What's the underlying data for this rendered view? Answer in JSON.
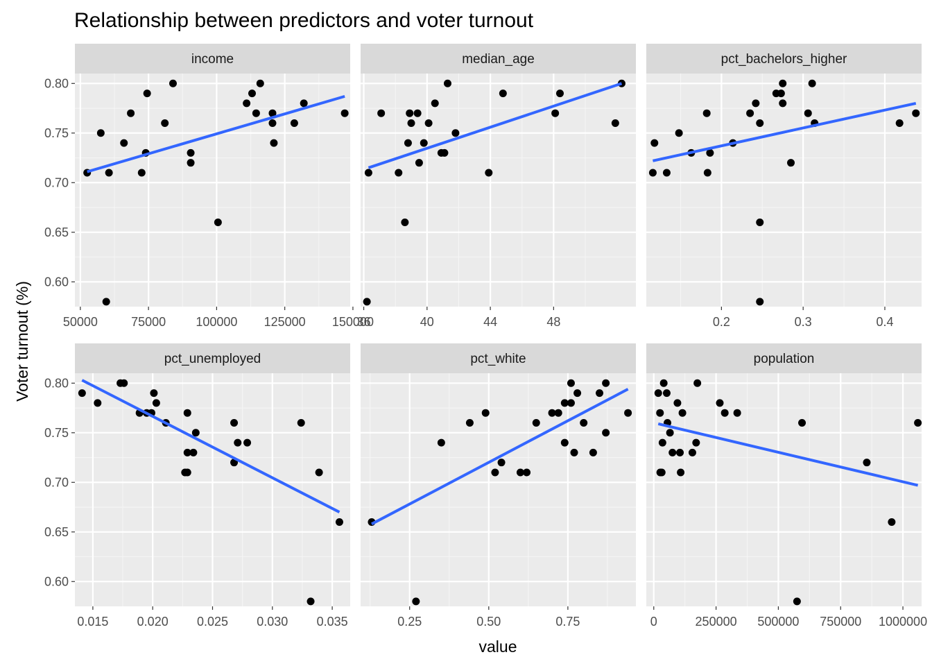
{
  "chart_data": {
    "type": "scatter",
    "title": "Relationship between predictors and voter turnout",
    "xlabel": "value",
    "ylabel": "Voter turnout (%)",
    "ylim": [
      0.575,
      0.81
    ],
    "y_ticks": [
      0.6,
      0.65,
      0.7,
      0.75,
      0.8
    ],
    "y_tick_labels": [
      "0.60",
      "0.65",
      "0.70",
      "0.75",
      "0.80"
    ],
    "grid": true,
    "series_color": "#000000",
    "trend_color": "#3366ff",
    "panel_bg": "#ebebeb",
    "strip_bg": "#d9d9d9",
    "panels": [
      {
        "name": "income",
        "xlim": [
          48000,
          149000
        ],
        "x_ticks": [
          50000,
          75000,
          100000,
          125000,
          150000
        ],
        "x_tick_labels": [
          "50000",
          "75000",
          "100000",
          "125000",
          "150000"
        ],
        "points": [
          [
            52500,
            0.71
          ],
          [
            57500,
            0.75
          ],
          [
            59500,
            0.58
          ],
          [
            60500,
            0.71
          ],
          [
            66000,
            0.74
          ],
          [
            68500,
            0.77
          ],
          [
            72500,
            0.71
          ],
          [
            74000,
            0.73
          ],
          [
            74500,
            0.79
          ],
          [
            81000,
            0.76
          ],
          [
            84000,
            0.8
          ],
          [
            90500,
            0.72
          ],
          [
            90500,
            0.73
          ],
          [
            100500,
            0.66
          ],
          [
            111000,
            0.78
          ],
          [
            113000,
            0.79
          ],
          [
            114500,
            0.77
          ],
          [
            116000,
            0.8
          ],
          [
            120500,
            0.76
          ],
          [
            120500,
            0.77
          ],
          [
            121000,
            0.74
          ],
          [
            128500,
            0.76
          ],
          [
            132000,
            0.78
          ],
          [
            147000,
            0.77
          ]
        ],
        "trend": [
          [
            52500,
            0.711
          ],
          [
            147000,
            0.787
          ]
        ]
      },
      {
        "name": "median_age",
        "xlim": [
          35.8,
          53.2
        ],
        "x_ticks": [
          36,
          40,
          44,
          48
        ],
        "x_tick_labels": [
          "36",
          "40",
          "44",
          "48"
        ],
        "points": [
          [
            36.2,
            0.58
          ],
          [
            36.3,
            0.71
          ],
          [
            37.1,
            0.77
          ],
          [
            38.2,
            0.71
          ],
          [
            38.6,
            0.66
          ],
          [
            38.8,
            0.74
          ],
          [
            38.9,
            0.77
          ],
          [
            39.0,
            0.76
          ],
          [
            39.4,
            0.77
          ],
          [
            39.5,
            0.72
          ],
          [
            39.8,
            0.74
          ],
          [
            40.1,
            0.76
          ],
          [
            40.5,
            0.78
          ],
          [
            40.9,
            0.73
          ],
          [
            41.1,
            0.73
          ],
          [
            41.3,
            0.8
          ],
          [
            41.8,
            0.75
          ],
          [
            43.9,
            0.71
          ],
          [
            44.8,
            0.79
          ],
          [
            48.1,
            0.77
          ],
          [
            48.4,
            0.79
          ],
          [
            51.9,
            0.76
          ],
          [
            52.3,
            0.8
          ]
        ],
        "trend": [
          [
            36.3,
            0.715
          ],
          [
            52.3,
            0.8
          ]
        ]
      },
      {
        "name": "pct_bachelors_higher",
        "xlim": [
          0.108,
          0.445
        ],
        "x_ticks": [
          0.2,
          0.3,
          0.4
        ],
        "x_tick_labels": [
          "0.2",
          "0.3",
          "0.4"
        ],
        "points": [
          [
            0.116,
            0.71
          ],
          [
            0.118,
            0.74
          ],
          [
            0.133,
            0.71
          ],
          [
            0.148,
            0.75
          ],
          [
            0.163,
            0.73
          ],
          [
            0.182,
            0.77
          ],
          [
            0.183,
            0.71
          ],
          [
            0.186,
            0.73
          ],
          [
            0.214,
            0.74
          ],
          [
            0.235,
            0.77
          ],
          [
            0.242,
            0.78
          ],
          [
            0.247,
            0.76
          ],
          [
            0.247,
            0.66
          ],
          [
            0.247,
            0.58
          ],
          [
            0.267,
            0.79
          ],
          [
            0.273,
            0.79
          ],
          [
            0.275,
            0.8
          ],
          [
            0.275,
            0.78
          ],
          [
            0.285,
            0.72
          ],
          [
            0.306,
            0.77
          ],
          [
            0.311,
            0.8
          ],
          [
            0.314,
            0.76
          ],
          [
            0.418,
            0.76
          ],
          [
            0.438,
            0.77
          ]
        ],
        "trend": [
          [
            0.116,
            0.722
          ],
          [
            0.438,
            0.78
          ]
        ]
      },
      {
        "name": "pct_unemployed",
        "xlim": [
          0.0135,
          0.0365
        ],
        "x_ticks": [
          0.015,
          0.02,
          0.025,
          0.03,
          0.035
        ],
        "x_tick_labels": [
          "0.015",
          "0.020",
          "0.025",
          "0.030",
          "0.035"
        ],
        "points": [
          [
            0.0141,
            0.79
          ],
          [
            0.0154,
            0.78
          ],
          [
            0.0173,
            0.8
          ],
          [
            0.0176,
            0.8
          ],
          [
            0.0189,
            0.77
          ],
          [
            0.0195,
            0.77
          ],
          [
            0.0199,
            0.77
          ],
          [
            0.0201,
            0.79
          ],
          [
            0.0203,
            0.78
          ],
          [
            0.0211,
            0.76
          ],
          [
            0.0227,
            0.71
          ],
          [
            0.0229,
            0.71
          ],
          [
            0.0229,
            0.73
          ],
          [
            0.0229,
            0.77
          ],
          [
            0.0234,
            0.73
          ],
          [
            0.0236,
            0.75
          ],
          [
            0.0268,
            0.72
          ],
          [
            0.0268,
            0.76
          ],
          [
            0.0271,
            0.74
          ],
          [
            0.0279,
            0.74
          ],
          [
            0.0324,
            0.76
          ],
          [
            0.0332,
            0.58
          ],
          [
            0.0339,
            0.71
          ],
          [
            0.0356,
            0.66
          ]
        ],
        "trend": [
          [
            0.0141,
            0.803
          ],
          [
            0.0356,
            0.67
          ]
        ]
      },
      {
        "name": "pct_white",
        "xlim": [
          0.095,
          0.965
        ],
        "x_ticks": [
          0.25,
          0.5,
          0.75
        ],
        "x_tick_labels": [
          "0.25",
          "0.50",
          "0.75"
        ],
        "points": [
          [
            0.13,
            0.66
          ],
          [
            0.27,
            0.58
          ],
          [
            0.35,
            0.74
          ],
          [
            0.44,
            0.76
          ],
          [
            0.49,
            0.77
          ],
          [
            0.52,
            0.71
          ],
          [
            0.54,
            0.72
          ],
          [
            0.6,
            0.71
          ],
          [
            0.62,
            0.71
          ],
          [
            0.65,
            0.76
          ],
          [
            0.7,
            0.77
          ],
          [
            0.72,
            0.77
          ],
          [
            0.74,
            0.74
          ],
          [
            0.74,
            0.78
          ],
          [
            0.76,
            0.8
          ],
          [
            0.76,
            0.78
          ],
          [
            0.77,
            0.73
          ],
          [
            0.78,
            0.79
          ],
          [
            0.8,
            0.76
          ],
          [
            0.83,
            0.73
          ],
          [
            0.85,
            0.79
          ],
          [
            0.87,
            0.8
          ],
          [
            0.87,
            0.75
          ],
          [
            0.94,
            0.77
          ]
        ],
        "trend": [
          [
            0.13,
            0.658
          ],
          [
            0.94,
            0.794
          ]
        ]
      },
      {
        "name": "population",
        "xlim": [
          -30000,
          1075000
        ],
        "x_ticks": [
          0,
          250000,
          500000,
          750000,
          1000000
        ],
        "x_tick_labels": [
          "0",
          "250000",
          "500000",
          "750000",
          "1000000"
        ],
        "points": [
          [
            18000,
            0.79
          ],
          [
            25000,
            0.77
          ],
          [
            26000,
            0.71
          ],
          [
            32000,
            0.71
          ],
          [
            35000,
            0.74
          ],
          [
            40000,
            0.8
          ],
          [
            52000,
            0.79
          ],
          [
            55000,
            0.76
          ],
          [
            65000,
            0.75
          ],
          [
            75000,
            0.73
          ],
          [
            95000,
            0.78
          ],
          [
            105000,
            0.73
          ],
          [
            108000,
            0.71
          ],
          [
            115000,
            0.77
          ],
          [
            155000,
            0.73
          ],
          [
            170000,
            0.74
          ],
          [
            175000,
            0.8
          ],
          [
            265000,
            0.78
          ],
          [
            285000,
            0.77
          ],
          [
            335000,
            0.77
          ],
          [
            575000,
            0.58
          ],
          [
            595000,
            0.76
          ],
          [
            855000,
            0.72
          ],
          [
            955000,
            0.66
          ],
          [
            1060000,
            0.76
          ]
        ],
        "trend": [
          [
            18000,
            0.759
          ],
          [
            1060000,
            0.697
          ]
        ]
      }
    ]
  }
}
